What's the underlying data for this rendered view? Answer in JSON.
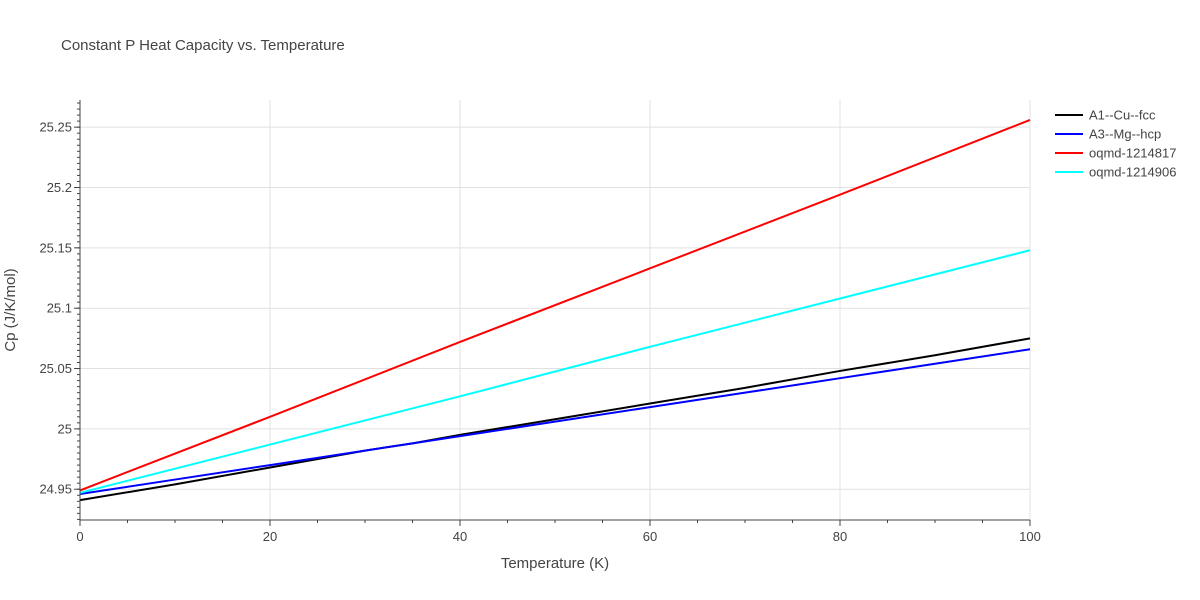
{
  "chart_data": {
    "type": "line",
    "title": "Constant P Heat Capacity vs. Temperature",
    "xlabel": "Temperature (K)",
    "ylabel": "Cp (J/K/mol)",
    "xlim": [
      0,
      100
    ],
    "ylim": [
      24.9245,
      25.2725
    ],
    "x_ticks": [
      0,
      20,
      40,
      60,
      80,
      100
    ],
    "x_tick_labels": [
      "0",
      "20",
      "40",
      "60",
      "80",
      "100"
    ],
    "y_ticks": [
      24.95,
      25.0,
      25.05,
      25.1,
      25.15,
      25.2,
      25.25
    ],
    "y_tick_labels": [
      "24.95",
      "25",
      "25.05",
      "25.1",
      "25.15",
      "25.2",
      "25.25"
    ],
    "grid": true,
    "legend_position": "top-right",
    "series": [
      {
        "name": "A1--Cu--fcc",
        "color": "#000000",
        "x": [
          0,
          10,
          20,
          30,
          35,
          40,
          50,
          60,
          70,
          80,
          90,
          100
        ],
        "y": [
          24.941,
          24.954,
          24.968,
          24.982,
          24.988,
          24.995,
          25.008,
          25.021,
          25.034,
          25.048,
          25.061,
          25.075
        ]
      },
      {
        "name": "A3--Mg--hcp",
        "color": "#0000ff",
        "x": [
          0,
          10,
          20,
          30,
          35,
          40,
          50,
          60,
          70,
          80,
          90,
          100
        ],
        "y": [
          24.946,
          24.958,
          24.97,
          24.982,
          24.988,
          24.994,
          25.006,
          25.018,
          25.03,
          25.042,
          25.054,
          25.066
        ]
      },
      {
        "name": "oqmd-1214817",
        "color": "#ff0000",
        "x": [
          0,
          20,
          40,
          60,
          80,
          100
        ],
        "y": [
          24.949,
          25.01,
          25.072,
          25.133,
          25.194,
          25.256
        ]
      },
      {
        "name": "oqmd-1214906",
        "color": "#00ffff",
        "x": [
          0,
          20,
          40,
          60,
          80,
          100
        ],
        "y": [
          24.947,
          24.987,
          25.027,
          25.068,
          25.108,
          25.148
        ]
      }
    ]
  }
}
